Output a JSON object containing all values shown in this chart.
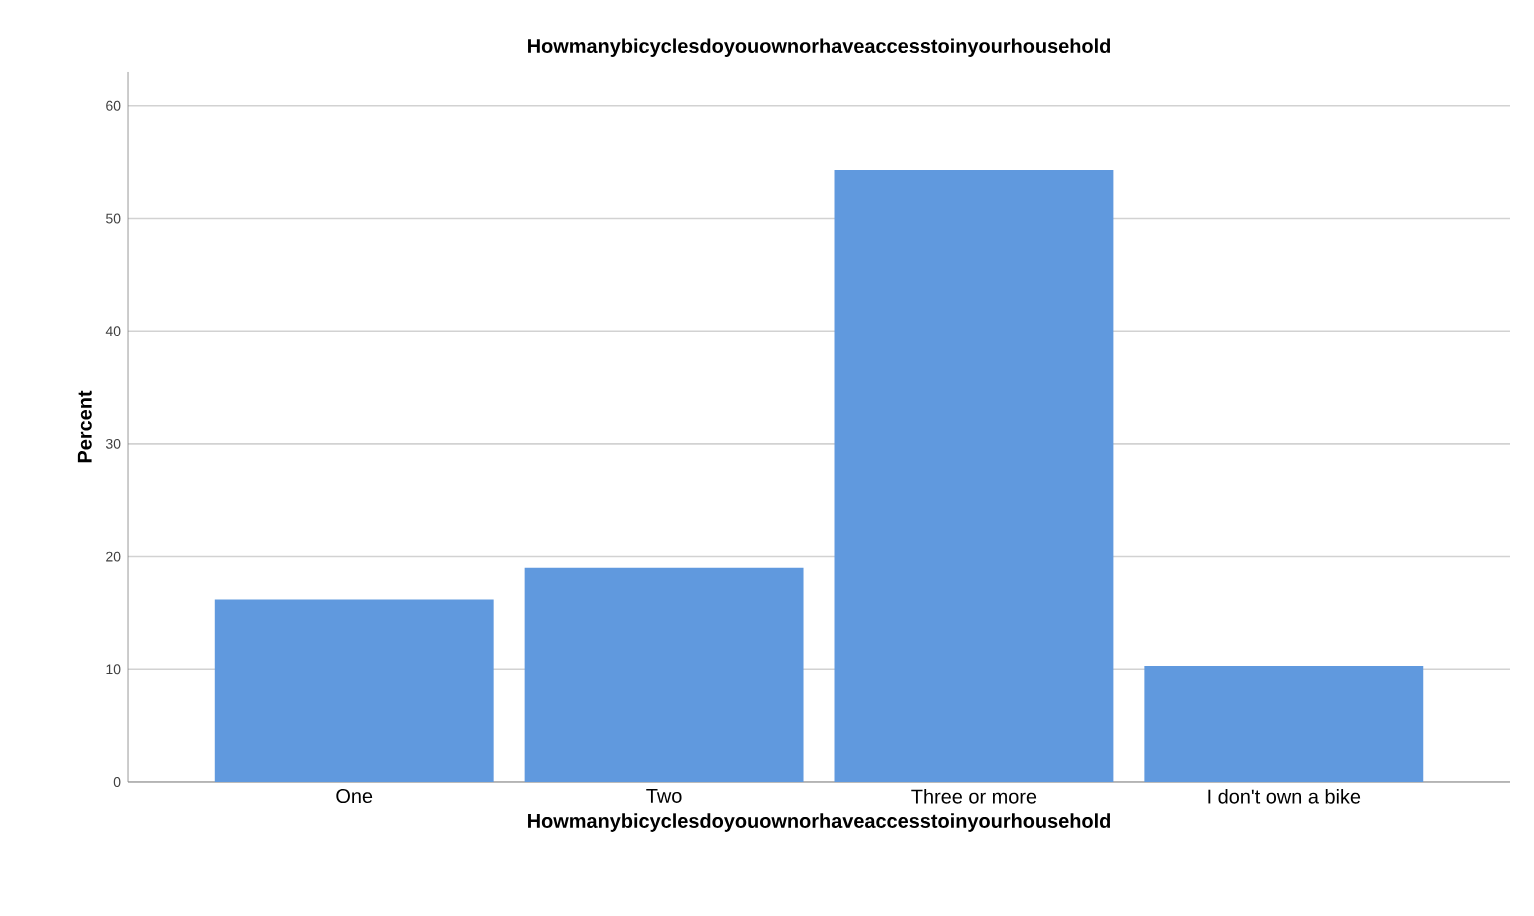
{
  "chart_data": {
    "type": "bar",
    "title": "Howmanybicyclesdoyouownorhaveaccesstoinyourhousehold",
    "xlabel": "Howmanybicyclesdoyouownorhaveaccesstoinyourhousehold",
    "ylabel": "Percent",
    "categories": [
      "One",
      "Two",
      "Three or more",
      "I don't own a bike"
    ],
    "values": [
      16.2,
      19.0,
      54.3,
      10.3
    ],
    "color": "#6099de",
    "ylim": [
      0,
      63
    ],
    "yticks": [
      0,
      10,
      20,
      30,
      40,
      50,
      60
    ],
    "grid": "y"
  }
}
